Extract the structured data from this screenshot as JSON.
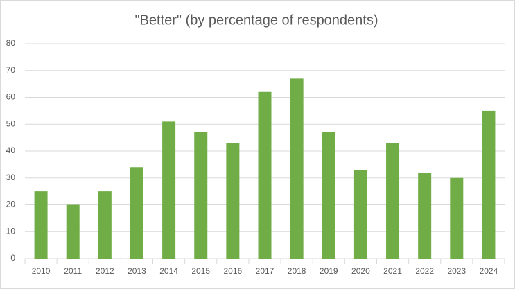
{
  "chart_data": {
    "type": "bar",
    "title": "\"Better\" (by percentage of respondents)",
    "categories": [
      "2010",
      "2011",
      "2012",
      "2013",
      "2014",
      "2015",
      "2016",
      "2017",
      "2018",
      "2019",
      "2020",
      "2021",
      "2022",
      "2023",
      "2024"
    ],
    "values": [
      25,
      20,
      25,
      34,
      51,
      47,
      43,
      62,
      67,
      47,
      33,
      43,
      32,
      30,
      55
    ],
    "color": "#70ad47",
    "ylim": [
      0,
      80
    ],
    "yticks": [
      0,
      10,
      20,
      30,
      40,
      50,
      60,
      70,
      80
    ],
    "grid": true
  }
}
